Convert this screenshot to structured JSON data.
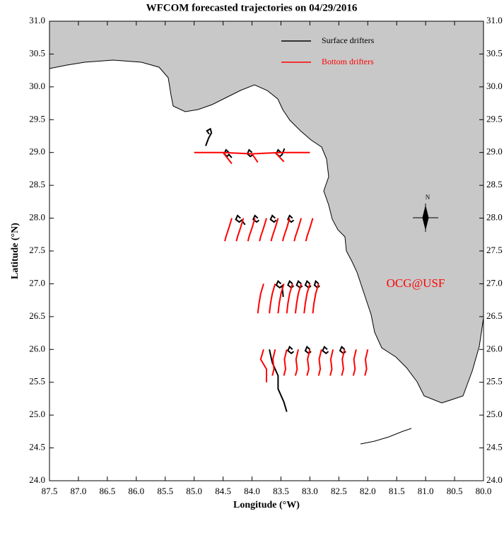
{
  "chart_data": {
    "type": "trajectory",
    "title": "WFCOM forecasted trajectories on 04/29/2016",
    "xlabel": "Longitude (°W)",
    "ylabel": "Latitude (°N)",
    "annotation": "OCG@USF",
    "annotation_color": "#ff0000",
    "compass_label": "N",
    "land_color": "#c8c8c8",
    "xlim": [
      87.5,
      80.0
    ],
    "xticks": [
      87.5,
      {
        "value": 87,
        "label": "87.0"
      },
      86.5,
      {
        "value": 86,
        "label": "86.0"
      },
      85.5,
      {
        "value": 85,
        "label": "85.0"
      },
      84.5,
      {
        "value": 84,
        "label": "84.0"
      },
      83.5,
      {
        "value": 83,
        "label": "83.0"
      },
      82.5,
      {
        "value": 82,
        "label": "82.0"
      },
      81.5,
      {
        "value": 81,
        "label": "81.0"
      },
      80.5,
      {
        "value": 80,
        "label": "80.0"
      }
    ],
    "ylim": [
      24.0,
      31.0
    ],
    "yticks": [
      {
        "value": 24,
        "label": "24.0"
      },
      24.5,
      {
        "value": 25,
        "label": "25.0"
      },
      25.5,
      {
        "value": 26,
        "label": "26.0"
      },
      26.5,
      {
        "value": 27,
        "label": "27.0"
      },
      27.5,
      {
        "value": 28,
        "label": "28.0"
      },
      28.5,
      {
        "value": 29,
        "label": "29.0"
      },
      29.5,
      {
        "value": 30,
        "label": "30.0"
      },
      30.5,
      {
        "value": 31,
        "label": "31.0"
      }
    ],
    "series": [
      {
        "name": "Surface drifters",
        "color": "#000000",
        "x": [
          84.8,
          84.75,
          84.7,
          84.72,
          84.78,
          84.74,
          null,
          84.4,
          84.45,
          84.48,
          84.43,
          84.4,
          84.35,
          null,
          84.0,
          84.05,
          84.08,
          84.03,
          83.98,
          null,
          83.5,
          83.55,
          83.58,
          83.52,
          83.48,
          83.44,
          null,
          84.2,
          84.25,
          84.28,
          84.22,
          84.18,
          84.12,
          null,
          83.9,
          83.95,
          83.98,
          83.92,
          83.88,
          null,
          83.6,
          83.65,
          83.68,
          83.62,
          83.58,
          null,
          83.3,
          83.35,
          83.38,
          83.32,
          83.28,
          null,
          83.5,
          83.55,
          83.58,
          83.52,
          83.48,
          83.46,
          null,
          83.3,
          83.35,
          83.38,
          83.32,
          83.28,
          null,
          83.15,
          83.2,
          83.23,
          83.17,
          83.13,
          null,
          83.0,
          83.05,
          83.08,
          83.02,
          82.98,
          null,
          82.85,
          82.9,
          82.92,
          82.87,
          82.83,
          null,
          83.7,
          83.65,
          83.55,
          83.55,
          83.45,
          83.4,
          null,
          83.3,
          83.35,
          83.38,
          83.32,
          83.28,
          null,
          83.0,
          83.05,
          83.08,
          83.02,
          82.98,
          null,
          82.7,
          82.75,
          82.78,
          82.72,
          82.68,
          null,
          82.4,
          82.45,
          82.48,
          82.42,
          82.38
        ],
        "y": [
          29.1,
          29.22,
          29.3,
          29.36,
          29.33,
          29.28,
          null,
          29.0,
          29.04,
          28.98,
          28.94,
          28.97,
          28.92,
          null,
          29.0,
          29.04,
          28.98,
          28.94,
          28.97,
          null,
          29.0,
          29.04,
          28.98,
          28.94,
          28.97,
          29.06,
          null,
          28.0,
          28.04,
          27.98,
          27.94,
          27.97,
          27.9,
          null,
          28.0,
          28.04,
          27.98,
          27.94,
          27.97,
          null,
          28.0,
          28.04,
          27.98,
          27.94,
          27.97,
          null,
          28.0,
          28.04,
          27.98,
          27.94,
          27.97,
          null,
          27.0,
          27.04,
          26.98,
          26.94,
          26.97,
          26.8,
          null,
          27.0,
          27.04,
          26.98,
          26.94,
          26.97,
          null,
          27.0,
          27.04,
          26.98,
          26.94,
          26.97,
          null,
          27.0,
          27.04,
          26.98,
          26.94,
          26.97,
          null,
          27.0,
          27.04,
          26.98,
          26.94,
          26.97,
          null,
          26.0,
          25.8,
          25.6,
          25.4,
          25.2,
          25.05,
          null,
          26.0,
          26.04,
          25.98,
          25.94,
          25.97,
          null,
          26.0,
          26.04,
          25.98,
          25.94,
          25.97,
          null,
          26.0,
          26.04,
          25.98,
          25.94,
          25.97,
          null,
          26.0,
          26.04,
          25.98,
          25.94,
          25.97
        ]
      },
      {
        "name": "Bottom drifters",
        "color": "#ff0000",
        "x": [
          85.0,
          84.5,
          84.0,
          83.5,
          83.0,
          null,
          84.5,
          84.35,
          null,
          84.0,
          83.9,
          null,
          83.6,
          83.45,
          null,
          84.35,
          84.4,
          84.45,
          84.47,
          null,
          84.15,
          84.2,
          84.25,
          84.27,
          null,
          83.95,
          84.0,
          84.05,
          84.07,
          null,
          83.75,
          83.8,
          83.85,
          83.87,
          null,
          83.55,
          83.6,
          83.65,
          83.67,
          null,
          83.35,
          83.4,
          83.45,
          83.47,
          null,
          83.15,
          83.2,
          83.25,
          83.27,
          null,
          82.95,
          83.0,
          83.05,
          83.07,
          null,
          83.8,
          83.85,
          83.88,
          83.9,
          null,
          83.6,
          83.65,
          83.68,
          83.7,
          null,
          83.45,
          83.5,
          83.53,
          83.55,
          null,
          83.3,
          83.35,
          83.38,
          83.4,
          null,
          83.15,
          83.2,
          83.23,
          83.25,
          null,
          83.0,
          83.05,
          83.08,
          83.1,
          null,
          82.85,
          82.9,
          82.93,
          82.95,
          null,
          83.8,
          83.85,
          83.75,
          83.75,
          null,
          83.6,
          83.64,
          83.62,
          83.65,
          null,
          83.4,
          83.44,
          83.42,
          83.45,
          null,
          83.2,
          83.24,
          83.22,
          83.25,
          null,
          83.0,
          83.04,
          83.02,
          83.05,
          null,
          82.8,
          82.84,
          82.82,
          82.85,
          null,
          82.6,
          82.64,
          82.62,
          82.65,
          null,
          82.4,
          82.44,
          82.42,
          82.45,
          null,
          82.2,
          82.24,
          82.22,
          82.25,
          null,
          82.0,
          82.04,
          82.02,
          82.05
        ],
        "y": [
          29.0,
          29.0,
          28.98,
          29.0,
          29.0,
          null,
          29.0,
          28.83,
          null,
          28.98,
          28.85,
          null,
          29.0,
          28.86,
          null,
          28.0,
          27.85,
          27.72,
          27.65,
          null,
          28.0,
          27.85,
          27.72,
          27.65,
          null,
          28.0,
          27.85,
          27.72,
          27.65,
          null,
          28.0,
          27.85,
          27.72,
          27.65,
          null,
          28.0,
          27.85,
          27.72,
          27.65,
          null,
          28.0,
          27.85,
          27.72,
          27.65,
          null,
          28.0,
          27.85,
          27.72,
          27.65,
          null,
          28.0,
          27.85,
          27.72,
          27.65,
          null,
          27.0,
          26.85,
          26.7,
          26.55,
          null,
          27.0,
          26.85,
          26.7,
          26.55,
          null,
          27.0,
          26.85,
          26.7,
          26.55,
          null,
          27.0,
          26.85,
          26.7,
          26.55,
          null,
          27.0,
          26.85,
          26.7,
          26.55,
          null,
          27.0,
          26.85,
          26.7,
          26.55,
          null,
          27.0,
          26.85,
          26.7,
          26.55,
          null,
          26.0,
          25.85,
          25.7,
          25.5,
          null,
          26.0,
          25.85,
          25.7,
          25.6,
          null,
          26.0,
          25.85,
          25.7,
          25.6,
          null,
          26.0,
          25.85,
          25.7,
          25.6,
          null,
          26.0,
          25.85,
          25.7,
          25.6,
          null,
          26.0,
          25.85,
          25.7,
          25.6,
          null,
          26.0,
          25.85,
          25.7,
          25.6,
          null,
          26.0,
          25.85,
          25.7,
          25.6,
          null,
          26.0,
          25.85,
          25.7,
          25.6,
          null,
          26.0,
          25.85,
          25.7,
          25.6
        ]
      }
    ]
  }
}
